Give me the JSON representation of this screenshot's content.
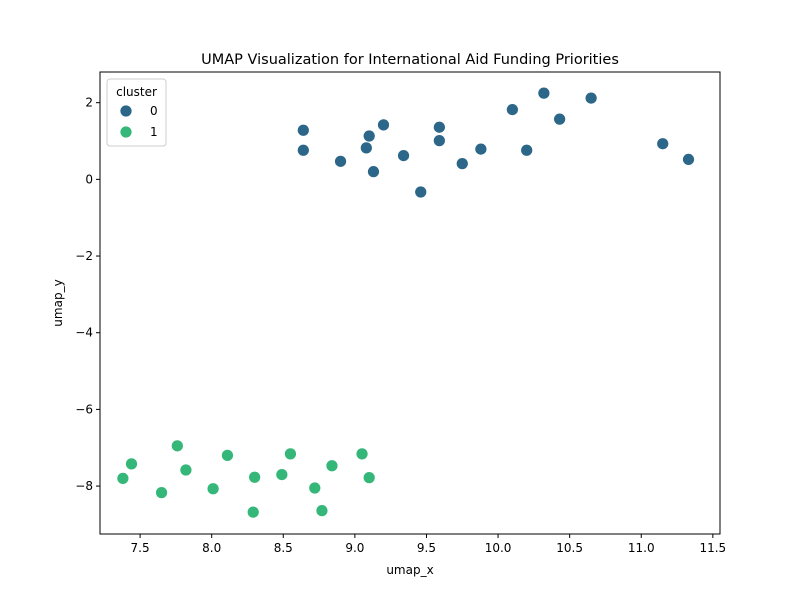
{
  "chart_data": {
    "type": "scatter",
    "title": "UMAP Visualization for International Aid Funding Priorities",
    "xlabel": "umap_x",
    "ylabel": "umap_y",
    "xlim": [
      7.22,
      11.55
    ],
    "ylim": [
      -9.25,
      2.8
    ],
    "xticks": [
      7.5,
      8.0,
      8.5,
      9.0,
      9.5,
      10.0,
      10.5,
      11.0,
      11.5
    ],
    "xtick_labels": [
      "7.5",
      "8.0",
      "8.5",
      "9.0",
      "9.5",
      "10.0",
      "10.5",
      "11.0",
      "11.5"
    ],
    "yticks": [
      2,
      0,
      -2,
      -4,
      -6,
      -8
    ],
    "ytick_labels": [
      "2",
      "0",
      "−2",
      "−4",
      "−6",
      "−8"
    ],
    "grid": false,
    "legend": {
      "title": "cluster",
      "placement": "top-left"
    },
    "series": [
      {
        "name": "0",
        "color": "#2c6689",
        "points": [
          [
            8.64,
            1.28
          ],
          [
            8.64,
            0.76
          ],
          [
            8.9,
            0.47
          ],
          [
            9.08,
            0.82
          ],
          [
            9.1,
            1.13
          ],
          [
            9.13,
            0.2
          ],
          [
            9.2,
            1.42
          ],
          [
            9.34,
            0.62
          ],
          [
            9.46,
            -0.33
          ],
          [
            9.59,
            1.36
          ],
          [
            9.59,
            1.01
          ],
          [
            9.75,
            0.41
          ],
          [
            9.88,
            0.79
          ],
          [
            10.1,
            1.82
          ],
          [
            10.2,
            0.76
          ],
          [
            10.32,
            2.25
          ],
          [
            10.43,
            1.57
          ],
          [
            10.65,
            2.12
          ],
          [
            11.15,
            0.93
          ],
          [
            11.33,
            0.52
          ]
        ]
      },
      {
        "name": "1",
        "color": "#35b779",
        "points": [
          [
            7.38,
            -7.8
          ],
          [
            7.44,
            -7.42
          ],
          [
            7.65,
            -8.17
          ],
          [
            7.76,
            -6.95
          ],
          [
            7.82,
            -7.58
          ],
          [
            8.01,
            -8.07
          ],
          [
            8.11,
            -7.2
          ],
          [
            8.29,
            -8.68
          ],
          [
            8.3,
            -7.77
          ],
          [
            8.49,
            -7.7
          ],
          [
            8.55,
            -7.16
          ],
          [
            8.72,
            -8.05
          ],
          [
            8.77,
            -8.64
          ],
          [
            8.84,
            -7.47
          ],
          [
            9.05,
            -7.16
          ],
          [
            9.1,
            -7.78
          ]
        ]
      }
    ]
  }
}
